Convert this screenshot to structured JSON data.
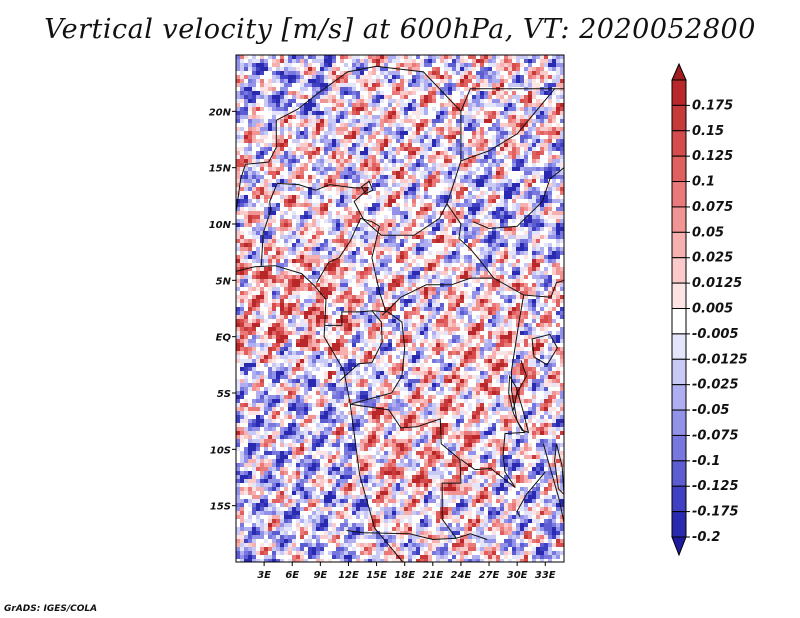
{
  "title": "Vertical velocity [m/s] at 600hPa, VT: 2020052800",
  "credit": "GrADS: IGES/COLA",
  "map": {
    "lon_range": [
      0,
      35
    ],
    "lat_range": [
      -20,
      25
    ],
    "lon_ticks": [
      {
        "value": 3,
        "label": "3E"
      },
      {
        "value": 6,
        "label": "6E"
      },
      {
        "value": 9,
        "label": "9E"
      },
      {
        "value": 12,
        "label": "12E"
      },
      {
        "value": 15,
        "label": "15E"
      },
      {
        "value": 18,
        "label": "18E"
      },
      {
        "value": 21,
        "label": "21E"
      },
      {
        "value": 24,
        "label": "24E"
      },
      {
        "value": 27,
        "label": "27E"
      },
      {
        "value": 30,
        "label": "30E"
      },
      {
        "value": 33,
        "label": "33E"
      }
    ],
    "lat_ticks": [
      {
        "value": 20,
        "label": "20N"
      },
      {
        "value": 15,
        "label": "15N"
      },
      {
        "value": 10,
        "label": "10N"
      },
      {
        "value": 5,
        "label": "5N"
      },
      {
        "value": 0,
        "label": "EQ"
      },
      {
        "value": -5,
        "label": "5S"
      },
      {
        "value": -10,
        "label": "10S"
      },
      {
        "value": -15,
        "label": "15S"
      }
    ]
  },
  "colorbar": {
    "levels": [
      {
        "label": "0.175",
        "color": "#b8282a"
      },
      {
        "label": "0.15",
        "color": "#c73a3a"
      },
      {
        "label": "0.125",
        "color": "#d64c4c"
      },
      {
        "label": "0.1",
        "color": "#e06060"
      },
      {
        "label": "0.075",
        "color": "#ea7a7a"
      },
      {
        "label": "0.05",
        "color": "#f19494"
      },
      {
        "label": "0.025",
        "color": "#f7b0b0"
      },
      {
        "label": "0.0125",
        "color": "#fbcaca"
      },
      {
        "label": "0.005",
        "color": "#fde4e4"
      },
      {
        "label": "-0.005",
        "color": "#ffffff"
      },
      {
        "label": "-0.0125",
        "color": "#e4e4fb"
      },
      {
        "label": "-0.025",
        "color": "#c9c9f6"
      },
      {
        "label": "-0.05",
        "color": "#aeaef0"
      },
      {
        "label": "-0.075",
        "color": "#9292e8"
      },
      {
        "label": "-0.1",
        "color": "#7777dd"
      },
      {
        "label": "-0.125",
        "color": "#5d5dd2"
      },
      {
        "label": "-0.175",
        "color": "#4040c2"
      },
      {
        "label": "-0.2",
        "color": "#2a2ab0"
      }
    ],
    "top_color": "#a11d22",
    "bottom_color": "#1f1aa0"
  }
}
